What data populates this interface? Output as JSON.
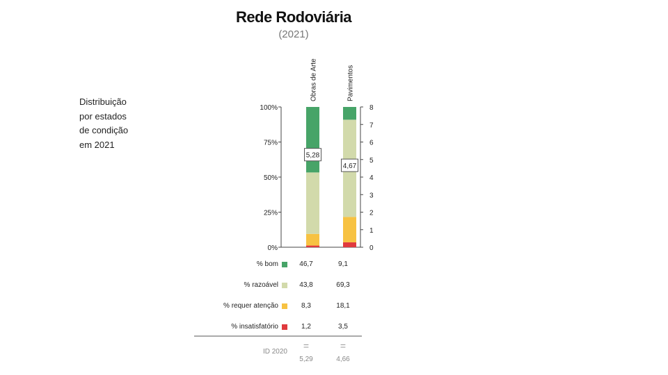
{
  "header": {
    "title": "Rede Rodoviária",
    "subtitle": "(2021)"
  },
  "side_label": [
    "Distribuição",
    "por estados",
    "de condição",
    "em 2021"
  ],
  "chart_data": {
    "type": "bar",
    "stacked": true,
    "title": "Rede Rodoviária",
    "subtitle": "(2021)",
    "categories": [
      "Obras de Arte",
      "Pavimentos"
    ],
    "ylim": [
      0,
      100
    ],
    "y_ticks": [
      0,
      25,
      50,
      75,
      100
    ],
    "y_tick_labels": [
      "0%",
      "25%",
      "50%",
      "75%",
      "100%"
    ],
    "y2lim": [
      0,
      8
    ],
    "y2_ticks": [
      0,
      1,
      2,
      3,
      4,
      5,
      6,
      7,
      8
    ],
    "y2_tick_labels": [
      "0",
      "1",
      "2",
      "3",
      "4",
      "5",
      "6",
      "7",
      "8"
    ],
    "series": [
      {
        "name": "% insatisfatório",
        "color": "#e03a3e",
        "values": [
          1.2,
          3.5
        ],
        "labels": [
          "1,2",
          "3,5"
        ]
      },
      {
        "name": "% requer atenção",
        "color": "#f7c242",
        "values": [
          8.3,
          18.1
        ],
        "labels": [
          "8,3",
          "18,1"
        ]
      },
      {
        "name": "% razoável",
        "color": "#d2daab",
        "values": [
          43.8,
          69.3
        ],
        "labels": [
          "43,8",
          "69,3"
        ]
      },
      {
        "name": "% bom",
        "color": "#47a468",
        "values": [
          46.7,
          9.1
        ],
        "labels": [
          "46,7",
          "9,1"
        ]
      }
    ],
    "index": {
      "values": [
        5.28,
        4.67
      ],
      "labels": [
        "5,28",
        "4,67"
      ]
    },
    "previous": {
      "label": "ID 2020",
      "symbol": "=",
      "values": [
        5.29,
        4.66
      ],
      "labels": [
        "5,29",
        "4,66"
      ]
    }
  }
}
